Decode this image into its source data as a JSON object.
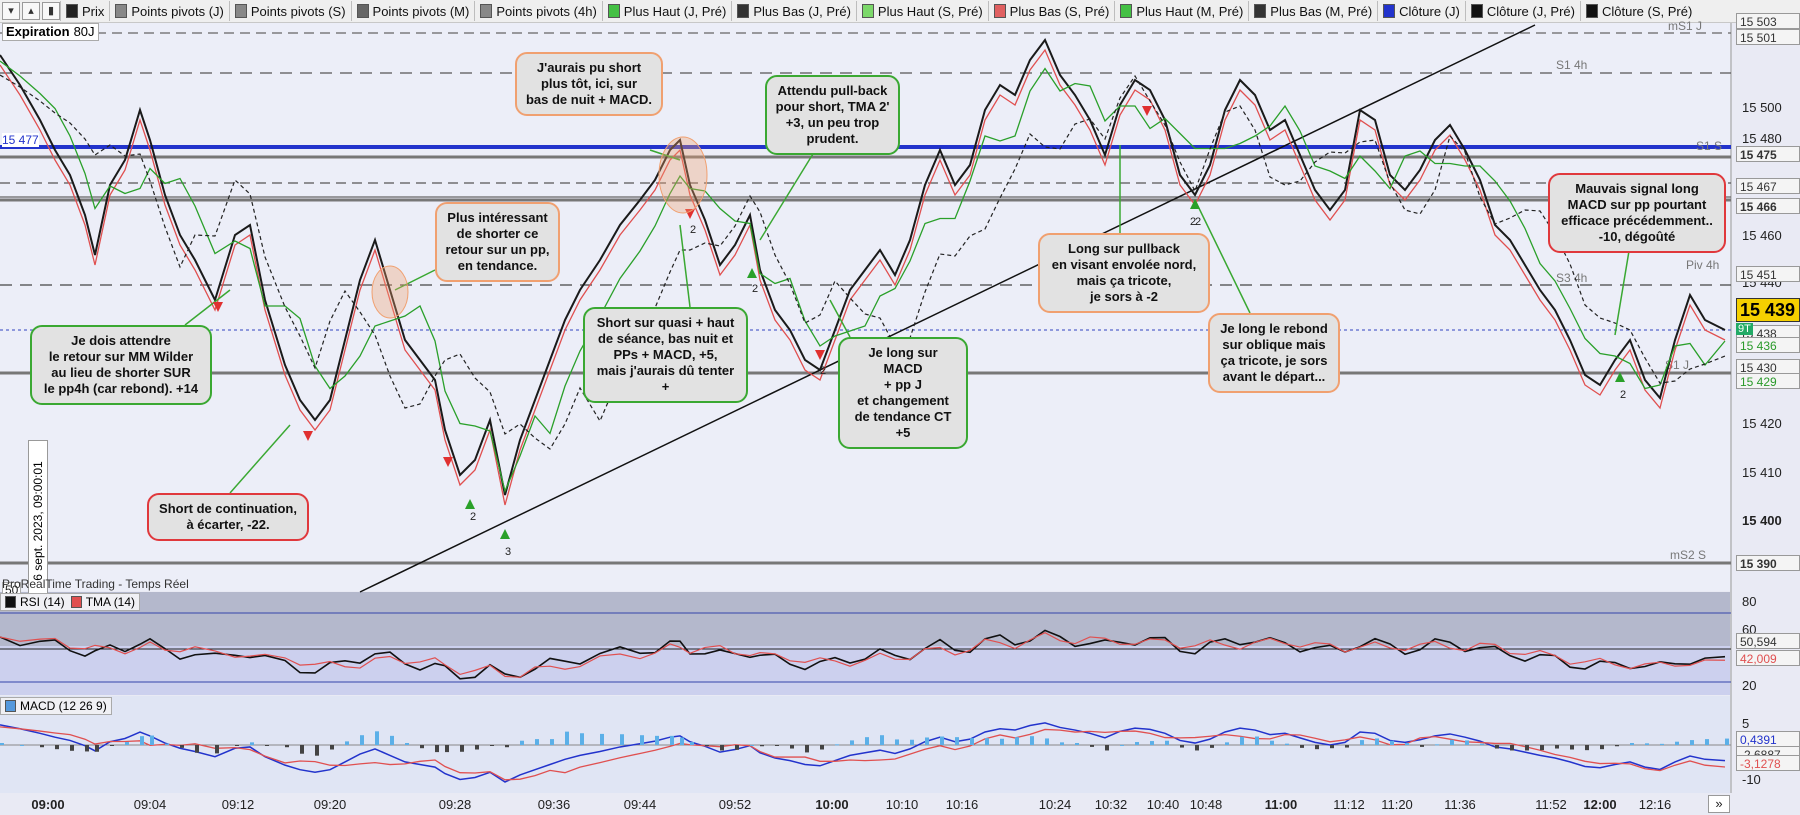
{
  "toolbar": {
    "buttons": [
      "red-triangle-icon",
      "green-triangle-icon",
      "bar-chart-icon",
      "list-icon"
    ],
    "legend": [
      {
        "label": "Prix",
        "color": "#222222"
      },
      {
        "label": "Points pivots (J)",
        "color": "#888888"
      },
      {
        "label": "Points pivots (S)",
        "color": "#888888"
      },
      {
        "label": "Points pivots (M)",
        "color": "#666666"
      },
      {
        "label": "Points pivots (4h)",
        "color": "#888888"
      },
      {
        "label": "Plus Haut (J, Pré)",
        "color": "#44c044"
      },
      {
        "label": "Plus Bas (J, Pré)",
        "color": "#333333"
      },
      {
        "label": "Plus Haut (S, Pré)",
        "color": "#7cd86a"
      },
      {
        "label": "Plus Bas (S, Pré)",
        "color": "#e06060"
      },
      {
        "label": "Plus Haut (M, Pré)",
        "color": "#44c044"
      },
      {
        "label": "Plus Bas (M, Pré)",
        "color": "#333333"
      },
      {
        "label": "Clôture (J)",
        "color": "#2233cc"
      },
      {
        "label": "Clôture (J, Pré)",
        "color": "#111111"
      },
      {
        "label": "Clôture (S, Pré)",
        "color": "#111111"
      }
    ]
  },
  "expiry": {
    "label": "Expiration",
    "value": "80J"
  },
  "vertical_date": "6 sept. 2023, 09:00:01",
  "left_tags": {
    "price_line": "15 477",
    "rsi_mid": "50"
  },
  "watermark": "ProRealTime Trading - Temps Réel",
  "level_labels": [
    "mS1 J",
    "S1 4h",
    "S1 S",
    "S3 4h",
    "Piv 4h",
    "S1 J",
    "mS2 S"
  ],
  "price_axis": {
    "ticks": [
      "15 500",
      "15 480",
      "15 460",
      "15 440",
      "15 420",
      "15 410",
      "15 400"
    ],
    "tags": [
      "15 503",
      "15 501",
      "15 475",
      "15 467",
      "15 466",
      "15 451",
      "15 438",
      "15 436",
      "15 430",
      "15 429",
      "15 390"
    ],
    "current": "15 439",
    "current_prefix": "9T"
  },
  "rsi_panel": {
    "label": "RSI (14)",
    "tma_label": "TMA (14)",
    "ticks": [
      "80",
      "60",
      "20"
    ],
    "values": [
      "50,594",
      "42,009"
    ]
  },
  "macd_panel": {
    "label": "MACD (12 26 9)",
    "ticks": [
      "5",
      "-10"
    ],
    "values": [
      "0,4391",
      "-2,6887",
      "-3,1278"
    ]
  },
  "time_axis": [
    {
      "label": "09:00",
      "bold": true
    },
    {
      "label": "09:04",
      "bold": false
    },
    {
      "label": "09:12",
      "bold": false
    },
    {
      "label": "09:20",
      "bold": false
    },
    {
      "label": "09:28",
      "bold": false
    },
    {
      "label": "09:36",
      "bold": false
    },
    {
      "label": "09:44",
      "bold": false
    },
    {
      "label": "09:52",
      "bold": false
    },
    {
      "label": "10:00",
      "bold": true
    },
    {
      "label": "10:10",
      "bold": false
    },
    {
      "label": "10:16",
      "bold": false
    },
    {
      "label": "10:24",
      "bold": false
    },
    {
      "label": "10:32",
      "bold": false
    },
    {
      "label": "10:40",
      "bold": false
    },
    {
      "label": "10:48",
      "bold": false
    },
    {
      "label": "11:00",
      "bold": true
    },
    {
      "label": "11:12",
      "bold": false
    },
    {
      "label": "11:20",
      "bold": false
    },
    {
      "label": "11:36",
      "bold": false
    },
    {
      "label": "11:52",
      "bold": false
    },
    {
      "label": "12:00",
      "bold": true
    },
    {
      "label": "12:16",
      "bold": false
    }
  ],
  "scroll_button": "»",
  "annotations": [
    {
      "text": "J'aurais pu short\nplus tôt, ici, sur\nbas de nuit + MACD.",
      "style": "orange"
    },
    {
      "text": "Attendu pull-back\npour short, TMA 2'\n+3, un peu trop\nprudent.",
      "style": "green"
    },
    {
      "text": "Plus intéressant\nde shorter ce\nretour sur un pp,\nen tendance.",
      "style": "orange"
    },
    {
      "text": "Je dois attendre\nle retour sur MM Wilder\nau lieu de shorter SUR\nle pp4h (car rebond). +14",
      "style": "green"
    },
    {
      "text": "Short de continuation,\nà écarter, -22.",
      "style": "red"
    },
    {
      "text": "Short sur quasi + haut\nde séance, bas nuit et\nPPs + MACD, +5,\nmais j'aurais dû tenter +",
      "style": "green"
    },
    {
      "text": "Je long sur MACD\n+ pp J\net changement\nde tendance CT\n+5",
      "style": "green"
    },
    {
      "text": "Long sur pullback\nen visant envolée nord,\nmais ça tricote,\nje sors à -2",
      "style": "orange"
    },
    {
      "text": "Je long le rebond\nsur oblique mais\nça tricote, je sors\navant le départ...",
      "style": "orange"
    },
    {
      "text": "Mauvais signal long\nMACD sur pp pourtant\nefficace précédemment..\n-10, dégoûté",
      "style": "red"
    }
  ],
  "markers": [
    "2",
    "3",
    "2",
    "2",
    "2",
    "2",
    "2",
    "2"
  ],
  "colors": {
    "close_line": "#2233cc",
    "pivot_line": "#777777",
    "candles_up": "#2d9e2d",
    "candles_down": "#111111",
    "tma": "#e05050",
    "ma_green": "#2aa02a",
    "current_price_bg": "#f5d000"
  }
}
